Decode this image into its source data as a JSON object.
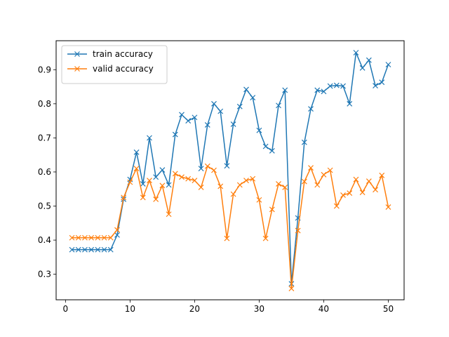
{
  "chart_data": {
    "type": "line",
    "title": "",
    "xlabel": "",
    "ylabel": "",
    "xlim": [
      -1.45,
      52.45
    ],
    "ylim": [
      0.225,
      0.985
    ],
    "xticks": [
      0,
      10,
      20,
      30,
      40,
      50
    ],
    "yticks": [
      0.3,
      0.4,
      0.5,
      0.6,
      0.7,
      0.8,
      0.9
    ],
    "grid": false,
    "legend_position": "top-left",
    "marker": "x",
    "x": [
      1,
      2,
      3,
      4,
      5,
      6,
      7,
      8,
      9,
      10,
      11,
      12,
      13,
      14,
      15,
      16,
      17,
      18,
      19,
      20,
      21,
      22,
      23,
      24,
      25,
      26,
      27,
      28,
      29,
      30,
      31,
      32,
      33,
      34,
      35,
      36,
      37,
      38,
      39,
      40,
      41,
      42,
      43,
      44,
      45,
      46,
      47,
      48,
      49,
      50
    ],
    "series": [
      {
        "name": "train accuracy",
        "color": "#1f77b4",
        "values": [
          0.372,
          0.372,
          0.372,
          0.372,
          0.372,
          0.372,
          0.372,
          0.415,
          0.52,
          0.578,
          0.658,
          0.565,
          0.7,
          0.585,
          0.606,
          0.562,
          0.71,
          0.768,
          0.75,
          0.76,
          0.61,
          0.738,
          0.8,
          0.778,
          0.618,
          0.74,
          0.792,
          0.842,
          0.818,
          0.722,
          0.675,
          0.662,
          0.795,
          0.84,
          0.272,
          0.465,
          0.687,
          0.785,
          0.84,
          0.836,
          0.852,
          0.854,
          0.852,
          0.8,
          0.95,
          0.905,
          0.928,
          0.853,
          0.863,
          0.915
        ]
      },
      {
        "name": "valid accuracy",
        "color": "#ff7f0e",
        "values": [
          0.407,
          0.407,
          0.407,
          0.407,
          0.407,
          0.407,
          0.407,
          0.43,
          0.525,
          0.57,
          0.61,
          0.525,
          0.575,
          0.52,
          0.56,
          0.476,
          0.595,
          0.585,
          0.58,
          0.575,
          0.555,
          0.617,
          0.605,
          0.558,
          0.405,
          0.535,
          0.562,
          0.575,
          0.58,
          0.518,
          0.405,
          0.49,
          0.565,
          0.555,
          0.258,
          0.428,
          0.572,
          0.612,
          0.562,
          0.592,
          0.605,
          0.5,
          0.532,
          0.538,
          0.578,
          0.54,
          0.573,
          0.548,
          0.59,
          0.497
        ]
      }
    ]
  }
}
